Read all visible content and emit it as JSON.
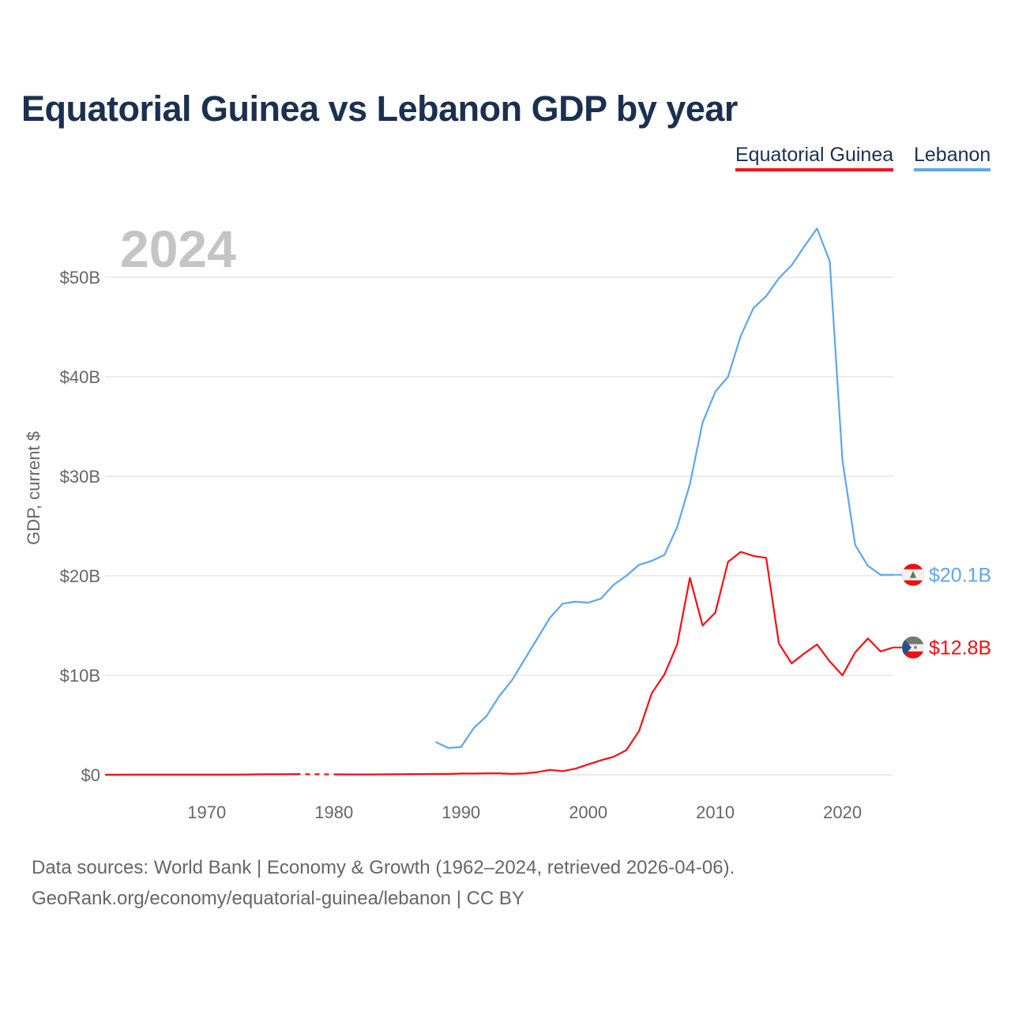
{
  "chart_data": {
    "type": "line",
    "title": "Equatorial Guinea vs Lebanon GDP by year",
    "ylabel": "GDP, current $",
    "xlabel": "",
    "year_label": "2024",
    "xlim": [
      1962,
      2024
    ],
    "ylim": [
      0,
      55
    ],
    "x_ticks": [
      1970,
      1980,
      1990,
      2000,
      2010,
      2020
    ],
    "y_ticks": [
      {
        "v": 0,
        "label": "$0"
      },
      {
        "v": 10,
        "label": "$10B"
      },
      {
        "v": 20,
        "label": "$20B"
      },
      {
        "v": 30,
        "label": "$30B"
      },
      {
        "v": 40,
        "label": "$40B"
      },
      {
        "v": 50,
        "label": "$50B"
      }
    ],
    "grid": true,
    "legend_position": "top-right",
    "series": [
      {
        "name": "Equatorial Guinea",
        "color": "#ff0a14",
        "end_label": "$12.8B",
        "flag": "equatorial-guinea-flag",
        "x": [
          1962,
          1963,
          1964,
          1965,
          1966,
          1967,
          1968,
          1969,
          1970,
          1971,
          1972,
          1973,
          1974,
          1975,
          1976,
          1977,
          1980,
          1981,
          1982,
          1983,
          1984,
          1985,
          1986,
          1987,
          1988,
          1989,
          1990,
          1991,
          1992,
          1993,
          1994,
          1995,
          1996,
          1997,
          1998,
          1999,
          2000,
          2001,
          2002,
          2003,
          2004,
          2005,
          2006,
          2007,
          2008,
          2009,
          2010,
          2011,
          2012,
          2013,
          2014,
          2015,
          2016,
          2017,
          2018,
          2019,
          2020,
          2021,
          2022,
          2023,
          2024
        ],
        "values": [
          0.01,
          0.01,
          0.02,
          0.02,
          0.02,
          0.02,
          0.02,
          0.02,
          0.02,
          0.02,
          0.02,
          0.03,
          0.05,
          0.06,
          0.06,
          0.07,
          0.05,
          0.04,
          0.04,
          0.04,
          0.05,
          0.06,
          0.07,
          0.08,
          0.09,
          0.09,
          0.13,
          0.13,
          0.15,
          0.15,
          0.1,
          0.14,
          0.27,
          0.5,
          0.37,
          0.62,
          1.05,
          1.46,
          1.81,
          2.48,
          4.4,
          8.2,
          10.1,
          13.1,
          19.8,
          15.0,
          16.3,
          21.4,
          22.4,
          22.0,
          21.8,
          13.2,
          11.2,
          12.2,
          13.1,
          11.4,
          10.0,
          12.3,
          13.7,
          12.4,
          12.8
        ],
        "gap": [
          1977,
          1980
        ]
      },
      {
        "name": "Lebanon",
        "color": "#5ea6ec",
        "end_label": "$20.1B",
        "flag": "lebanon-flag",
        "x": [
          1988,
          1989,
          1990,
          1991,
          1992,
          1993,
          1994,
          1995,
          1996,
          1997,
          1998,
          1999,
          2000,
          2001,
          2002,
          2003,
          2004,
          2005,
          2006,
          2007,
          2008,
          2009,
          2010,
          2011,
          2012,
          2013,
          2014,
          2015,
          2016,
          2017,
          2018,
          2019,
          2020,
          2021,
          2022,
          2023,
          2024
        ],
        "values": [
          3.3,
          2.7,
          2.8,
          4.7,
          5.9,
          7.9,
          9.5,
          11.6,
          13.7,
          15.8,
          17.2,
          17.4,
          17.3,
          17.7,
          19.1,
          20.0,
          21.1,
          21.5,
          22.1,
          24.9,
          29.2,
          35.4,
          38.5,
          40.0,
          44.1,
          46.9,
          48.1,
          49.9,
          51.2,
          53.1,
          54.9,
          51.6,
          31.6,
          23.1,
          21.0,
          20.1,
          20.1
        ]
      }
    ]
  },
  "footer": {
    "line1": "Data sources: World Bank | Economy & Growth (1962–2024, retrieved 2026-04-06).",
    "line2": "GeoRank.org/economy/equatorial-guinea/lebanon | CC BY"
  }
}
